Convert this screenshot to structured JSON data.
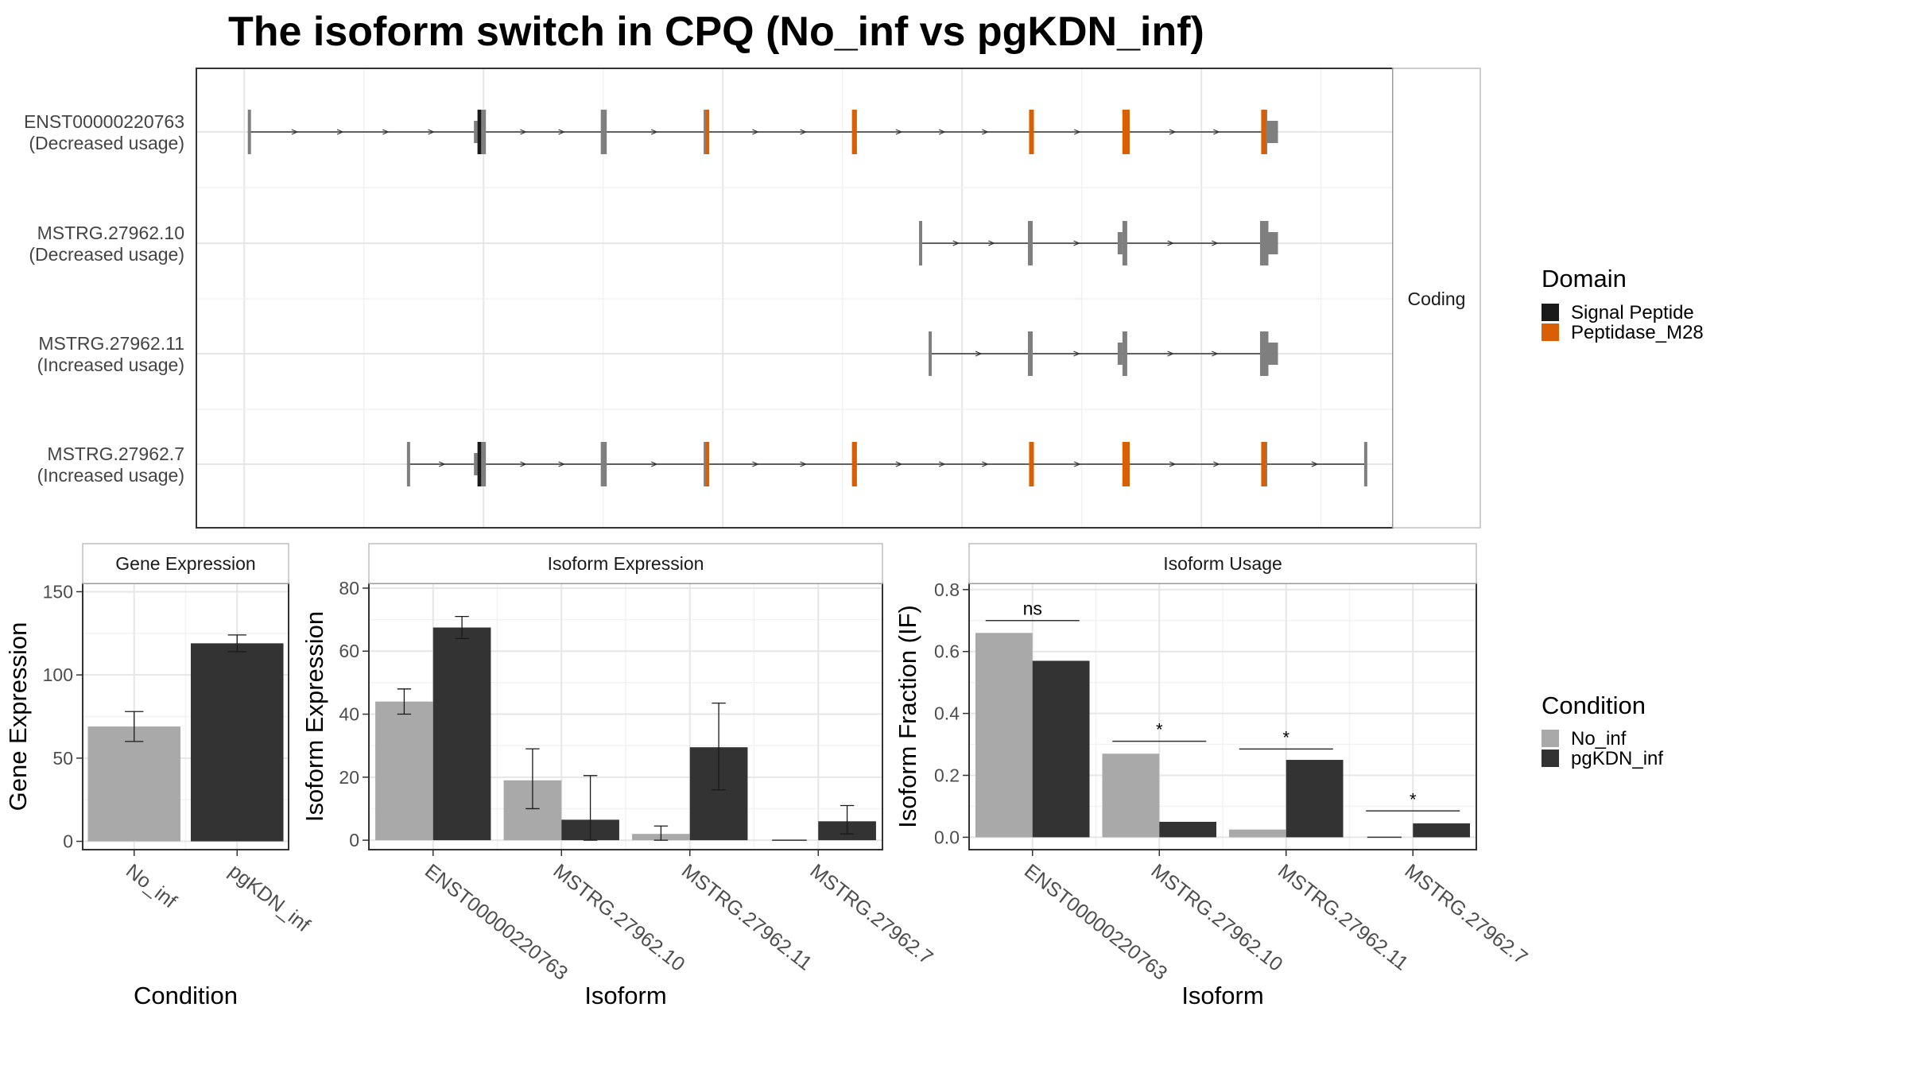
{
  "title": "The isoform switch in CPQ (No_inf vs pgKDN_inf)",
  "colors": {
    "exon": "#7f7f7f",
    "signal_peptide": "#1a1a1a",
    "peptidase_m28": "#d95f02",
    "no_inf": "#a9a9a9",
    "pgkdn_inf": "#333333",
    "intron": "#333333"
  },
  "chart_data": [
    {
      "type": "gene-structure",
      "panel": "transcripts",
      "strip_label": "Coding",
      "legend": {
        "title": "Domain",
        "entries": [
          {
            "name": "Signal Peptide",
            "color": "#1a1a1a"
          },
          {
            "name": "Peptidase_M28",
            "color": "#d95f02"
          }
        ]
      },
      "tracks": [
        {
          "id": "ENST00000220763",
          "usage": "(Decreased usage)",
          "exons": [
            [
              1.5,
              2.5
            ],
            [
              97.5,
              101
            ],
            [
              149,
              151.5
            ],
            [
              192,
              194
            ],
            [
              254,
              256
            ],
            [
              328,
              330
            ],
            [
              367,
              370
            ],
            [
              425,
              427.5
            ]
          ],
          "utr": [
            [
              96,
              97.5
            ],
            [
              427.5,
              432
            ]
          ],
          "domains": [
            {
              "type": "signal",
              "range": [
                97.5,
                99
              ]
            },
            {
              "type": "peptidase",
              "range": [
                193,
                194
              ]
            },
            {
              "type": "peptidase",
              "range": [
                254,
                256
              ]
            },
            {
              "type": "peptidase",
              "range": [
                328,
                330
              ]
            },
            {
              "type": "peptidase",
              "range": [
                367,
                370
              ]
            },
            {
              "type": "peptidase",
              "range": [
                425,
                427
              ]
            }
          ],
          "span": [
            1.5,
            432
          ]
        },
        {
          "id": "MSTRG.27962.10",
          "usage": "(Decreased usage)",
          "exons": [
            [
              282,
              283
            ],
            [
              327.5,
              329.5
            ],
            [
              367,
              369
            ],
            [
              424.5,
              428
            ]
          ],
          "utr": [
            [
              365,
              367
            ],
            [
              428,
              432
            ]
          ],
          "domains": [],
          "span": [
            282,
            432
          ]
        },
        {
          "id": "MSTRG.27962.11",
          "usage": "(Increased usage)",
          "exons": [
            [
              286,
              287
            ],
            [
              327.5,
              329.5
            ],
            [
              367,
              369
            ],
            [
              424.5,
              428
            ]
          ],
          "utr": [
            [
              365,
              367
            ],
            [
              428,
              432
            ]
          ],
          "domains": [],
          "span": [
            286,
            432
          ]
        },
        {
          "id": "MSTRG.27962.7",
          "usage": "(Increased usage)",
          "exons": [
            [
              68,
              68.6
            ],
            [
              97.5,
              101
            ],
            [
              149,
              151.5
            ],
            [
              192,
              194
            ],
            [
              254,
              256
            ],
            [
              328,
              330
            ],
            [
              367,
              370
            ],
            [
              425,
              427.5
            ],
            [
              468,
              469
            ]
          ],
          "utr": [
            [
              96,
              97.5
            ]
          ],
          "domains": [
            {
              "type": "signal",
              "range": [
                97.5,
                99
              ]
            },
            {
              "type": "peptidase",
              "range": [
                193,
                194
              ]
            },
            {
              "type": "peptidase",
              "range": [
                254,
                256
              ]
            },
            {
              "type": "peptidase",
              "range": [
                328,
                330
              ]
            },
            {
              "type": "peptidase",
              "range": [
                367,
                370
              ]
            },
            {
              "type": "peptidase",
              "range": [
                425,
                427
              ]
            }
          ],
          "span": [
            68,
            469
          ]
        }
      ],
      "xlim": [
        -20,
        480
      ],
      "grid_x": [
        0,
        100,
        200,
        300,
        400
      ],
      "grid_minor_x": [
        50,
        150,
        250,
        350,
        450
      ]
    },
    {
      "type": "bar",
      "panel": "gene",
      "strip_label": "Gene Expression",
      "xlabel": "Condition",
      "ylabel": "Gene Expression",
      "categories": [
        "No_inf",
        "pgKDN_inf"
      ],
      "values": [
        69,
        119
      ],
      "error_low": [
        60,
        114
      ],
      "error_high": [
        78,
        124
      ],
      "ylim": [
        -5,
        155
      ],
      "yticks": [
        0,
        50,
        100,
        150
      ],
      "ytick_labels": [
        "0",
        "50",
        "100",
        "150"
      ]
    },
    {
      "type": "bar",
      "panel": "isoform_expression",
      "strip_label": "Isoform Expression",
      "xlabel": "Isoform",
      "ylabel": "Isoform Expression",
      "categories": [
        "ENST00000220763",
        "MSTRG.27962.10",
        "MSTRG.27962.11",
        "MSTRG.27962.7"
      ],
      "series": [
        {
          "name": "No_inf",
          "values": [
            44,
            19,
            2,
            0
          ],
          "error_low": [
            40,
            10,
            0,
            0
          ],
          "error_high": [
            48,
            29,
            4.5,
            0
          ]
        },
        {
          "name": "pgKDN_inf",
          "values": [
            67.5,
            6.5,
            29.5,
            6
          ],
          "error_low": [
            64,
            0,
            16,
            2
          ],
          "error_high": [
            71,
            20.5,
            43.5,
            11
          ]
        }
      ],
      "ylim": [
        -3,
        81.5
      ],
      "yticks": [
        0,
        20,
        40,
        60,
        80
      ],
      "ytick_labels": [
        "0",
        "20",
        "40",
        "60",
        "80"
      ]
    },
    {
      "type": "bar",
      "panel": "isoform_usage",
      "strip_label": "Isoform Usage",
      "xlabel": "Isoform",
      "ylabel": "Isoform Fraction (IF)",
      "categories": [
        "ENST00000220763",
        "MSTRG.27962.10",
        "MSTRG.27962.11",
        "MSTRG.27962.7"
      ],
      "series": [
        {
          "name": "No_inf",
          "values": [
            0.66,
            0.27,
            0.025,
            0
          ]
        },
        {
          "name": "pgKDN_inf",
          "values": [
            0.57,
            0.05,
            0.25,
            0.045
          ]
        }
      ],
      "significance": [
        {
          "label": "ns",
          "y": 0.7
        },
        {
          "label": "*",
          "y": 0.31
        },
        {
          "label": "*",
          "y": 0.285
        },
        {
          "label": "*",
          "y": 0.085
        }
      ],
      "ylim": [
        -0.04,
        0.82
      ],
      "yticks": [
        0.0,
        0.2,
        0.4,
        0.6,
        0.8
      ],
      "ytick_labels": [
        "0.0",
        "0.2",
        "0.4",
        "0.6",
        "0.8"
      ]
    }
  ],
  "condition_legend": {
    "title": "Condition",
    "entries": [
      {
        "name": "No_inf",
        "color": "#a9a9a9"
      },
      {
        "name": "pgKDN_inf",
        "color": "#333333"
      }
    ]
  }
}
